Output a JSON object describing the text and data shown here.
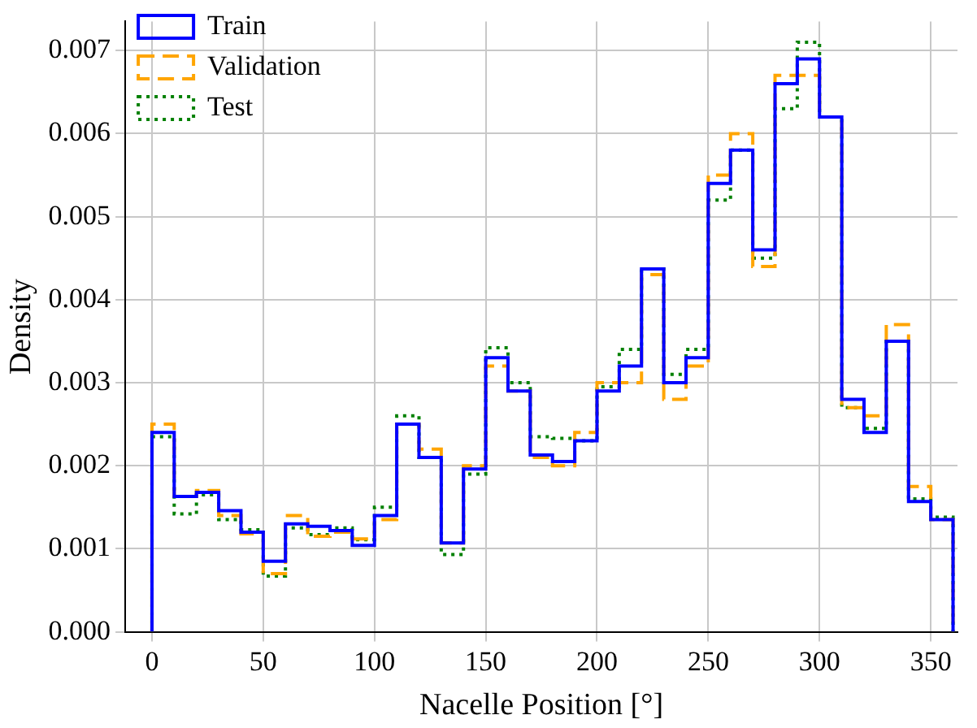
{
  "chart_data": {
    "type": "histogram",
    "xlabel": "Nacelle Position [°]",
    "ylabel": "Density",
    "bins": [
      0,
      10,
      20,
      30,
      40,
      50,
      60,
      70,
      80,
      90,
      100,
      110,
      120,
      130,
      140,
      150,
      160,
      170,
      180,
      190,
      200,
      210,
      220,
      230,
      240,
      250,
      260,
      270,
      280,
      290,
      300,
      310,
      320,
      330,
      340,
      350,
      360
    ],
    "series": [
      {
        "name": "Train",
        "color": "#0000ff",
        "line_style": "solid",
        "values": [
          0.0024,
          0.00163,
          0.00168,
          0.00146,
          0.0012,
          0.00085,
          0.0013,
          0.00127,
          0.00122,
          0.00104,
          0.0014,
          0.0025,
          0.0021,
          0.00107,
          0.00196,
          0.0033,
          0.0029,
          0.00213,
          0.00205,
          0.0023,
          0.0029,
          0.0032,
          0.00437,
          0.003,
          0.0033,
          0.0054,
          0.0058,
          0.0046,
          0.0066,
          0.0069,
          0.0062,
          0.0028,
          0.0024,
          0.0035,
          0.00157,
          0.00135
        ]
      },
      {
        "name": "Validation",
        "color": "#ffa500",
        "line_style": "dashed",
        "values": [
          0.0025,
          0.00163,
          0.0017,
          0.0014,
          0.00118,
          0.0007,
          0.0014,
          0.00115,
          0.0012,
          0.00112,
          0.00135,
          0.0025,
          0.0022,
          0.00107,
          0.002,
          0.0032,
          0.0029,
          0.0021,
          0.002,
          0.0024,
          0.003,
          0.003,
          0.0043,
          0.0028,
          0.0032,
          0.0055,
          0.006,
          0.0044,
          0.0067,
          0.0067,
          0.0062,
          0.0027,
          0.0026,
          0.0037,
          0.00175,
          0.00135
        ]
      },
      {
        "name": "Test",
        "color": "#008000",
        "line_style": "dotted",
        "values": [
          0.00235,
          0.00142,
          0.00165,
          0.00135,
          0.00123,
          0.00067,
          0.00125,
          0.00117,
          0.00125,
          0.00111,
          0.0015,
          0.0026,
          0.0021,
          0.00093,
          0.0019,
          0.00342,
          0.003,
          0.00235,
          0.00233,
          0.0023,
          0.00295,
          0.0034,
          0.00437,
          0.0031,
          0.0034,
          0.0052,
          0.0058,
          0.0045,
          0.0063,
          0.0071,
          0.0062,
          0.0027,
          0.00245,
          0.0035,
          0.0016,
          0.00138
        ]
      }
    ],
    "xlim": [
      -12,
      362
    ],
    "xticks": [
      0,
      50,
      100,
      150,
      200,
      250,
      300,
      350
    ],
    "ylim": [
      0,
      0.00735
    ],
    "yticks": [
      {
        "value": 0,
        "label": "0.000"
      },
      {
        "value": 0.001,
        "label": "0.001"
      },
      {
        "value": 0.002,
        "label": "0.002"
      },
      {
        "value": 0.003,
        "label": "0.003"
      },
      {
        "value": 0.004,
        "label": "0.004"
      },
      {
        "value": 0.005,
        "label": "0.005"
      },
      {
        "value": 0.006,
        "label": "0.006"
      },
      {
        "value": 0.007,
        "label": "0.007"
      }
    ],
    "grid": true,
    "legend": "top left"
  }
}
